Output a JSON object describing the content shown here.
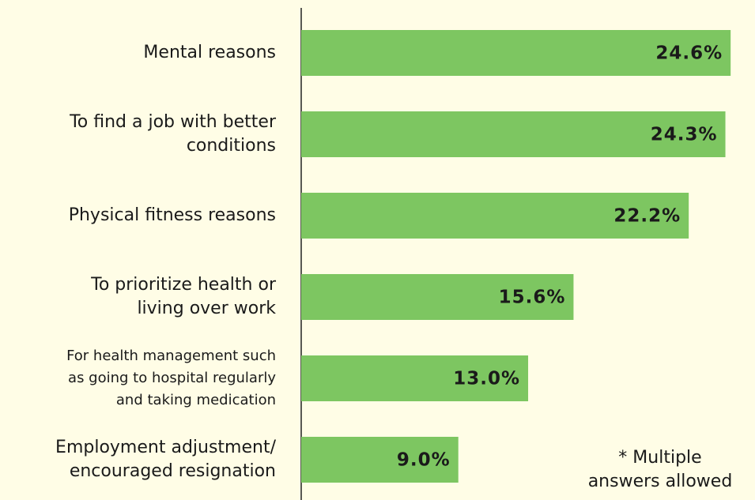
{
  "chart_data": {
    "type": "bar",
    "orientation": "horizontal",
    "categories": [
      "Mental reasons",
      "To find a job with better\nconditions",
      "Physical fitness reasons",
      "To prioritize health or\nliving over work",
      "For health management such\nas going to hospital regularly\nand taking medication",
      "Employment adjustment/\nencouraged resignation"
    ],
    "values": [
      24.6,
      24.3,
      22.2,
      15.6,
      13.0,
      9.0
    ],
    "value_labels": [
      "24.6%",
      "24.3%",
      "22.2%",
      "15.6%",
      "13.0%",
      "9.0%"
    ],
    "color": "#7dc661",
    "xlim": [
      0,
      25
    ],
    "annotation": "* Multiple\nanswers allowed"
  }
}
